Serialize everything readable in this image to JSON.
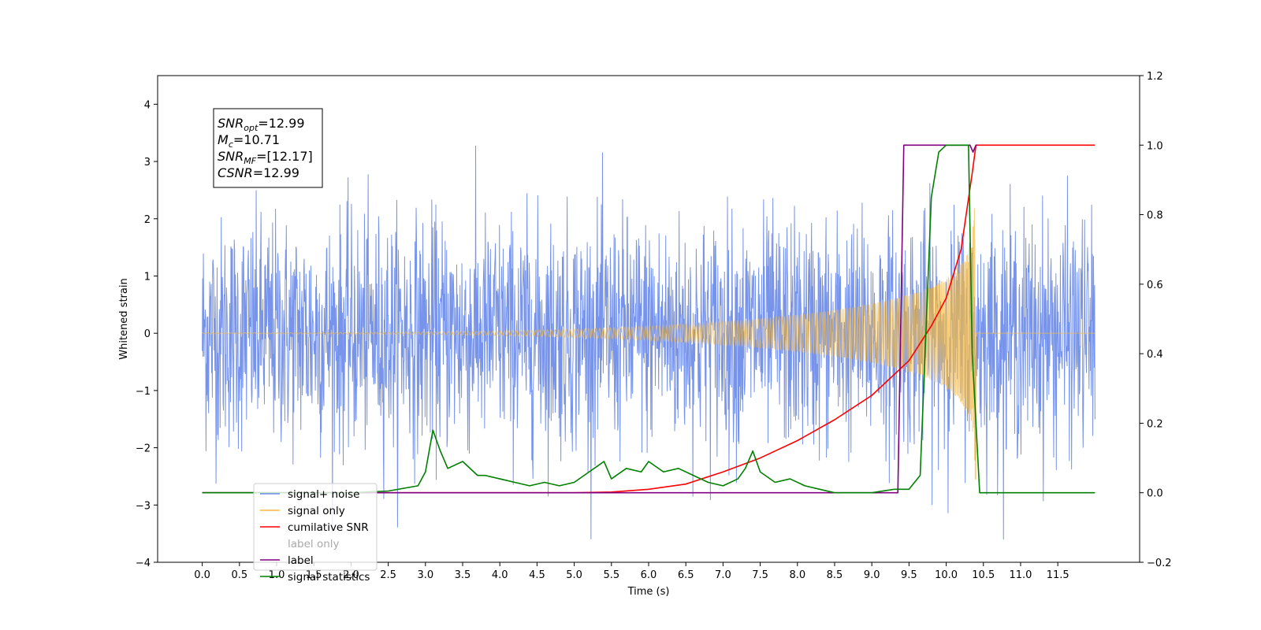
{
  "chart_data": {
    "type": "line",
    "xlabel": "Time (s)",
    "ylabel": "Whitened strain",
    "xlim": [
      -0.6,
      12.6
    ],
    "ylim": [
      -4,
      4.5
    ],
    "y2lim": [
      -0.2,
      1.2
    ],
    "x_ticks": [
      0.0,
      0.5,
      1.0,
      1.5,
      2.0,
      2.5,
      3.0,
      3.5,
      4.0,
      4.5,
      5.0,
      5.5,
      6.0,
      6.5,
      7.0,
      7.5,
      8.0,
      8.5,
      9.0,
      9.5,
      10.0,
      10.5,
      11.0,
      11.5
    ],
    "x_tick_labels": [
      "0.0",
      "0.5",
      "1.0",
      "1.5",
      "2.0",
      "2.5",
      "3.0",
      "3.5",
      "4.0",
      "4.5",
      "5.0",
      "5.5",
      "6.0",
      "6.5",
      "7.0",
      "7.5",
      "8.0",
      "8.5",
      "9.0",
      "9.5",
      "10.0",
      "10.5",
      "11.0",
      "11.5"
    ],
    "y_ticks": [
      -4,
      -3,
      -2,
      -1,
      0,
      1,
      2,
      3,
      4
    ],
    "y_tick_labels": [
      "−4",
      "−3",
      "−2",
      "−1",
      "0",
      "1",
      "2",
      "3",
      "4"
    ],
    "y2_ticks": [
      -0.2,
      0.0,
      0.2,
      0.4,
      0.6,
      0.8,
      1.0,
      1.2
    ],
    "y2_tick_labels": [
      "−0.2",
      "0.0",
      "0.2",
      "0.4",
      "0.6",
      "0.8",
      "1.0",
      "1.2"
    ],
    "legend_position": "lower-left",
    "annotation": {
      "lines": [
        {
          "main": "SNR",
          "sub": "opt",
          "rest": "=12.99"
        },
        {
          "main": "M",
          "sub": "c",
          "rest": "=10.71"
        },
        {
          "main": "SNR",
          "sub": "MF",
          "rest": "=[12.17]"
        },
        {
          "main": "CSNR",
          "sub": "",
          "rest": "=12.99"
        }
      ]
    },
    "series": [
      {
        "name": "signal+ noise",
        "color": "#6b8be8",
        "axis": "left",
        "kind": "noise",
        "x_range": [
          0.0,
          12.0
        ],
        "amplitude_range": [
          -3.6,
          4.1
        ]
      },
      {
        "name": "signal only",
        "color": "#f5b942",
        "axis": "left",
        "kind": "chirp",
        "x_range": [
          0.0,
          12.0
        ],
        "merger_time": 10.4,
        "peak_amplitude": 2.6
      },
      {
        "name": "cumilative SNR",
        "color": "#ff0000",
        "axis": "right",
        "x": [
          0.0,
          5.0,
          5.5,
          6.0,
          6.5,
          7.0,
          7.5,
          8.0,
          8.5,
          9.0,
          9.5,
          9.8,
          10.0,
          10.2,
          10.35,
          10.4,
          12.0
        ],
        "y": [
          0.0,
          0.0,
          0.002,
          0.01,
          0.025,
          0.06,
          0.1,
          0.15,
          0.21,
          0.28,
          0.38,
          0.48,
          0.56,
          0.7,
          0.92,
          1.0,
          1.0
        ]
      },
      {
        "name": "label only",
        "color": "#ffffff",
        "axis": "right",
        "hidden": true,
        "x": [],
        "y": []
      },
      {
        "name": "label",
        "color": "#800080",
        "axis": "right",
        "x": [
          0.0,
          9.35,
          9.43,
          10.32,
          10.36,
          10.4,
          10.42
        ],
        "y": [
          0.0,
          0.0,
          1.0,
          1.0,
          0.98,
          1.0,
          1.0
        ]
      },
      {
        "name": "signal statistics",
        "color": "#008000",
        "axis": "right",
        "x": [
          0.0,
          2.0,
          2.5,
          2.9,
          3.0,
          3.1,
          3.2,
          3.3,
          3.5,
          3.7,
          3.8,
          4.0,
          4.2,
          4.4,
          4.6,
          4.8,
          5.0,
          5.2,
          5.4,
          5.5,
          5.7,
          5.9,
          6.0,
          6.2,
          6.4,
          6.6,
          6.8,
          7.0,
          7.2,
          7.3,
          7.4,
          7.5,
          7.7,
          7.9,
          8.1,
          8.3,
          8.5,
          9.0,
          9.3,
          9.5,
          9.65,
          9.8,
          9.9,
          10.0,
          10.1,
          10.2,
          10.3,
          10.35,
          10.45,
          12.0
        ],
        "y": [
          0.0,
          0.0,
          0.005,
          0.02,
          0.06,
          0.18,
          0.12,
          0.07,
          0.09,
          0.05,
          0.05,
          0.04,
          0.03,
          0.02,
          0.03,
          0.02,
          0.03,
          0.06,
          0.09,
          0.04,
          0.07,
          0.06,
          0.09,
          0.06,
          0.07,
          0.05,
          0.03,
          0.02,
          0.04,
          0.07,
          0.12,
          0.06,
          0.03,
          0.04,
          0.02,
          0.01,
          0.0,
          0.0,
          0.01,
          0.01,
          0.05,
          0.85,
          0.98,
          1.0,
          1.0,
          1.0,
          1.0,
          0.4,
          0.0,
          0.0
        ]
      }
    ]
  }
}
